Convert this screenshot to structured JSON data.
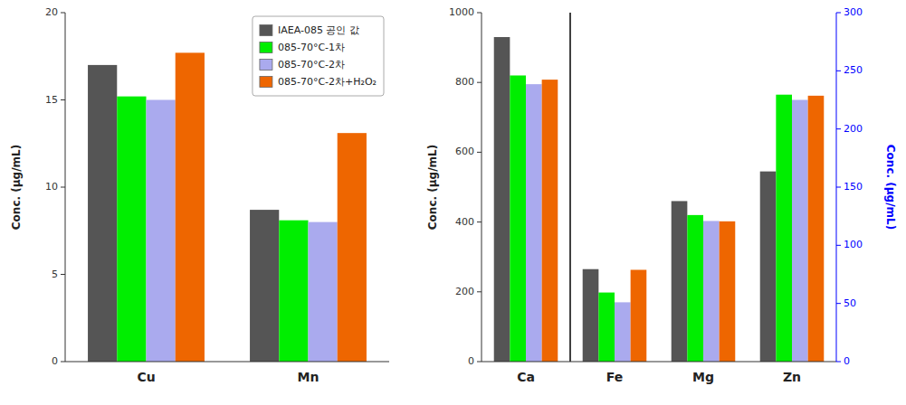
{
  "chart_data": [
    {
      "type": "bar",
      "categories": [
        "Cu",
        "Mn"
      ],
      "series": [
        {
          "name": "IAEA-085 공인 값",
          "color": "#555555",
          "values": [
            17.0,
            8.7
          ]
        },
        {
          "name": "085-70°C-1차",
          "color": "#00ee00",
          "values": [
            15.2,
            8.1
          ]
        },
        {
          "name": "085-70°C-2차",
          "color": "#aaaaee",
          "values": [
            15.0,
            8.0
          ]
        },
        {
          "name": "085-70°C-2차+H₂O₂",
          "color": "#ee6600",
          "values": [
            17.7,
            13.1
          ]
        }
      ],
      "ylabel": "Conc. (μg/mL)",
      "ylim": [
        0,
        20
      ],
      "yticks": [
        0,
        5,
        10,
        15,
        20
      ],
      "legend": "upper right",
      "grid": false
    },
    {
      "type": "bar",
      "categories": [
        "Ca",
        "Fe",
        "Mg",
        "Zn"
      ],
      "series": [
        {
          "color": "#555555",
          "values": [
            930,
            265,
            460,
            545
          ]
        },
        {
          "color": "#00ee00",
          "values": [
            820,
            198,
            420,
            765
          ]
        },
        {
          "color": "#aaaaee",
          "values": [
            795,
            170,
            403,
            750
          ]
        },
        {
          "color": "#ee6600",
          "values": [
            808,
            263,
            402,
            762
          ]
        }
      ],
      "ylabel": "Conc. (μg/mL)",
      "ylim": [
        0,
        1000
      ],
      "yticks": [
        0,
        200,
        400,
        600,
        800,
        1000
      ],
      "y2label": "Conc. (μg/mL)",
      "y2lim": [
        0,
        300
      ],
      "y2ticks": [
        0,
        50,
        100,
        150,
        200,
        250,
        300
      ],
      "grid": false
    }
  ]
}
